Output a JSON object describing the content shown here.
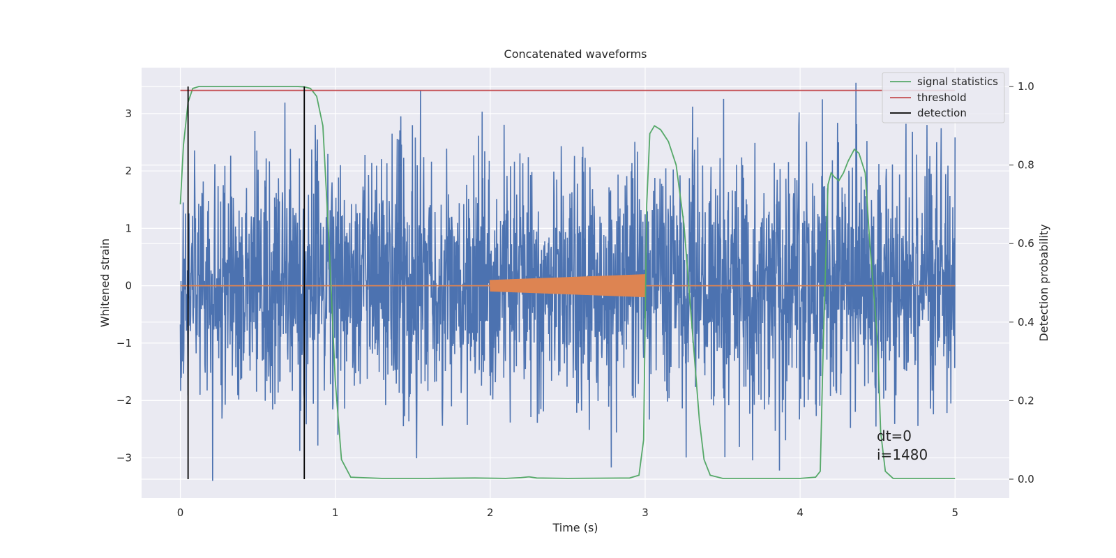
{
  "chart_data": {
    "type": "line",
    "title": "Concatenated waveforms",
    "xlabel": "Time (s)",
    "ylabel": "Whitened strain",
    "ylabel_right": "Detection probability",
    "xlim": [
      -0.25,
      5.35
    ],
    "ylim": [
      -3.7,
      3.8
    ],
    "ylim_right": [
      -0.048,
      1.048
    ],
    "x_ticks": [
      0,
      1,
      2,
      3,
      4,
      5
    ],
    "y_ticks": [
      -3,
      -2,
      -1,
      0,
      1,
      2,
      3
    ],
    "y_ticks_right": [
      0.0,
      0.2,
      0.4,
      0.6,
      0.8,
      1.0
    ],
    "grid": true,
    "legend": {
      "placement": "top-right",
      "entries": [
        {
          "label": "signal statistics",
          "color": "#55a868"
        },
        {
          "label": "threshold",
          "color": "#c44e52"
        },
        {
          "label": "detection",
          "color": "#000000"
        }
      ]
    },
    "series": [
      {
        "kind": "noise",
        "axis": "left",
        "color": "#4c72b0",
        "x_range": [
          0,
          5
        ],
        "envelope": [
          -3.4,
          3.6
        ]
      },
      {
        "kind": "injected_chirp",
        "axis": "left",
        "color": "#dd8452",
        "x_range": [
          2,
          3
        ],
        "amplitude_start": 0.1,
        "amplitude_end": 0.2
      },
      {
        "name": "signal statistics",
        "axis": "right",
        "color": "#55a868",
        "x": [
          0.0,
          0.02,
          0.05,
          0.08,
          0.12,
          0.2,
          0.5,
          0.75,
          0.8,
          0.84,
          0.88,
          0.92,
          0.96,
          1.0,
          1.04,
          1.1,
          1.3,
          1.6,
          1.9,
          2.1,
          2.2,
          2.25,
          2.3,
          2.5,
          2.9,
          2.96,
          2.99,
          3.01,
          3.03,
          3.06,
          3.1,
          3.15,
          3.2,
          3.25,
          3.3,
          3.35,
          3.38,
          3.42,
          3.5,
          3.8,
          4.0,
          4.1,
          4.13,
          4.15,
          4.18,
          4.2,
          4.22,
          4.25,
          4.28,
          4.31,
          4.35,
          4.38,
          4.42,
          4.45,
          4.5,
          4.52,
          4.55,
          4.6,
          4.7,
          5.0
        ],
        "y": [
          0.7,
          0.85,
          0.96,
          0.995,
          1.0,
          1.0,
          1.0,
          1.0,
          0.999,
          0.995,
          0.975,
          0.9,
          0.6,
          0.25,
          0.05,
          0.005,
          0.002,
          0.002,
          0.003,
          0.002,
          0.004,
          0.006,
          0.003,
          0.002,
          0.003,
          0.01,
          0.1,
          0.7,
          0.88,
          0.9,
          0.89,
          0.86,
          0.8,
          0.65,
          0.4,
          0.15,
          0.05,
          0.01,
          0.002,
          0.002,
          0.002,
          0.005,
          0.02,
          0.35,
          0.75,
          0.78,
          0.77,
          0.76,
          0.78,
          0.81,
          0.84,
          0.83,
          0.78,
          0.6,
          0.35,
          0.12,
          0.02,
          0.002,
          0.002,
          0.002
        ]
      },
      {
        "name": "threshold",
        "axis": "right",
        "color": "#c44e52",
        "x": [
          0,
          5
        ],
        "y": [
          0.99,
          0.99
        ]
      },
      {
        "name": "detection",
        "axis": "right",
        "color": "#000000",
        "kind": "vlines",
        "x": [
          0.05,
          0.8
        ],
        "y_range": [
          0.0,
          1.0
        ]
      }
    ],
    "annotations": [
      "dt=0",
      "i=1480"
    ]
  }
}
